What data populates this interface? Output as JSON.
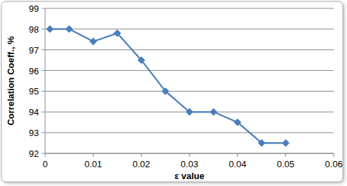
{
  "chart_data": {
    "type": "line",
    "x_label": "ε value",
    "y_label": "Correlation Coeff., %",
    "x": [
      0.001,
      0.005,
      0.01,
      0.015,
      0.02,
      0.025,
      0.03,
      0.035,
      0.04,
      0.045,
      0.05
    ],
    "values": [
      98,
      98,
      97.4,
      97.8,
      96.5,
      95,
      94,
      94,
      93.5,
      92.5,
      92.5
    ],
    "color": "#4a7ebb",
    "marker": "diamond",
    "xlim": [
      0,
      0.06
    ],
    "xticks": [
      0,
      0.01,
      0.02,
      0.03,
      0.04,
      0.05,
      0.06
    ],
    "ylim": [
      92,
      99
    ],
    "yticks": [
      92,
      93,
      94,
      95,
      96,
      97,
      98,
      99
    ],
    "grid": true
  }
}
